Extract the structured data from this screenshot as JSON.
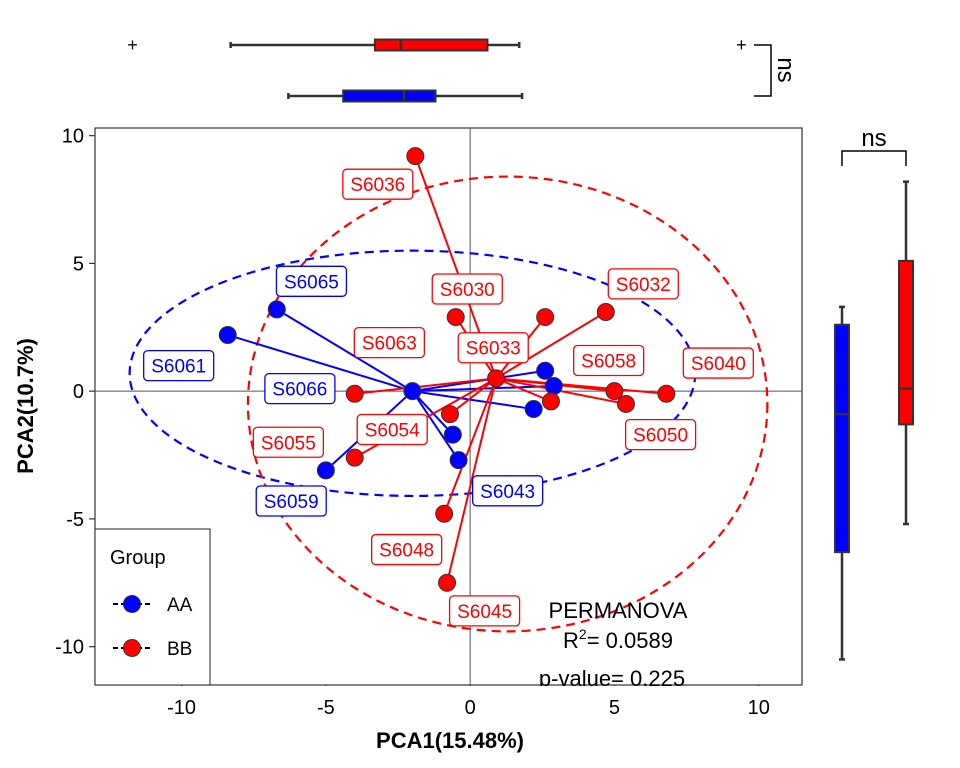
{
  "chart_data": {
    "type": "scatter",
    "xlabel": "PCA1(15.48%)",
    "ylabel": "PCA2(10.7%)",
    "xlim": [
      -13.0,
      11.5
    ],
    "ylim": [
      -11.5,
      10.3
    ],
    "x_ticks": [
      -10,
      -5,
      0,
      5,
      10
    ],
    "y_ticks": [
      -10,
      -5,
      0,
      5,
      10
    ],
    "x_tick_labels": [
      "-10",
      "-5",
      "0",
      "5",
      "10"
    ],
    "y_tick_labels": [
      "-10",
      "-5",
      "0",
      "5",
      "10"
    ],
    "colors": {
      "AA": "#0000ff",
      "BB": "#ff0000"
    },
    "legend": {
      "title": "Group",
      "entries": [
        "AA",
        "BB"
      ],
      "position": "bottom-left"
    },
    "groups": [
      {
        "name": "AA",
        "color": "#0000ff",
        "centroid": [
          -2.0,
          0.0
        ],
        "ellipse": {
          "center": [
            -2.0,
            0.7
          ],
          "rx": 9.8,
          "ry": 4.8
        },
        "points": [
          {
            "x": -8.4,
            "y": 2.2,
            "label": "S6061",
            "lx": -10.1,
            "ly": 1.0
          },
          {
            "x": -6.7,
            "y": 3.2,
            "label": "S6065",
            "lx": -5.5,
            "ly": 4.3
          },
          {
            "x": -2.0,
            "y": 0.0,
            "label": "S6066",
            "lx": -5.9,
            "ly": 0.1
          },
          {
            "x": -5.0,
            "y": -3.1,
            "label": "S6059",
            "lx": -6.2,
            "ly": -4.3
          },
          {
            "x": -0.6,
            "y": -1.7,
            "label": "",
            "lx": null,
            "ly": null
          },
          {
            "x": -0.4,
            "y": -2.7,
            "label": "S6043",
            "lx": 1.3,
            "ly": -3.9
          },
          {
            "x": 2.6,
            "y": 0.8,
            "label": "",
            "lx": null,
            "ly": null
          },
          {
            "x": 2.9,
            "y": 0.2,
            "label": "",
            "lx": null,
            "ly": null
          },
          {
            "x": 2.2,
            "y": -0.7,
            "label": "",
            "lx": null,
            "ly": null
          }
        ]
      },
      {
        "name": "BB",
        "color": "#ff0000",
        "centroid": [
          0.9,
          0.5
        ],
        "ellipse": {
          "center": [
            1.3,
            -0.5
          ],
          "rx": 9.0,
          "ry": 8.9
        },
        "points": [
          {
            "x": -1.9,
            "y": 9.2,
            "label": "S6036",
            "lx": -3.2,
            "ly": 8.1
          },
          {
            "x": -0.5,
            "y": 2.9,
            "label": "S6030",
            "lx": -0.1,
            "ly": 4.0
          },
          {
            "x": -4.0,
            "y": -0.1,
            "label": "S6055",
            "lx": -6.3,
            "ly": -2.0
          },
          {
            "x": -0.7,
            "y": -0.9,
            "label": "S6054",
            "lx": -2.7,
            "ly": -1.5
          },
          {
            "x": -4.0,
            "y": -2.6,
            "label": "",
            "lx": null,
            "ly": null
          },
          {
            "x": -0.9,
            "y": -4.8,
            "label": "S6048",
            "lx": -2.2,
            "ly": -6.2
          },
          {
            "x": -0.8,
            "y": -7.5,
            "label": "S6045",
            "lx": 0.5,
            "ly": -8.6
          },
          {
            "x": 0.9,
            "y": 0.5,
            "label": "S6063",
            "lx": -2.8,
            "ly": 1.9
          },
          {
            "x": 2.6,
            "y": 2.9,
            "label": "S6033",
            "lx": 0.8,
            "ly": 1.7
          },
          {
            "x": 4.7,
            "y": 3.1,
            "label": "S6032",
            "lx": 6.0,
            "ly": 4.2
          },
          {
            "x": 5.0,
            "y": 0.0,
            "label": "S6058",
            "lx": 4.8,
            "ly": 1.2
          },
          {
            "x": 5.4,
            "y": -0.5,
            "label": "S6050",
            "lx": 6.6,
            "ly": -1.7
          },
          {
            "x": 6.8,
            "y": -0.1,
            "label": "S6040",
            "lx": 8.6,
            "ly": 1.1
          },
          {
            "x": 2.8,
            "y": -0.4,
            "label": "",
            "lx": null,
            "ly": null
          }
        ]
      }
    ],
    "annotation": {
      "title": "PERMANOVA",
      "r2_prefix": "R",
      "r2_sup": "2",
      "r2_value": "= 0.0589",
      "pvalue": "p-value= 0.225"
    },
    "top_boxplot": {
      "axis": "PCA1",
      "significance": "ns",
      "boxes": [
        {
          "group": "BB",
          "color": "#ff0000",
          "min": -8.3,
          "q1": -3.3,
          "median": -2.4,
          "q3": 0.6,
          "max": 1.7,
          "outliers": [
            -11.7,
            9.4
          ]
        },
        {
          "group": "AA",
          "color": "#0000ff",
          "min": -6.3,
          "q1": -4.4,
          "median": -2.3,
          "q3": -1.2,
          "max": 1.8,
          "outliers": []
        }
      ]
    },
    "right_boxplot": {
      "axis": "PCA2",
      "significance": "ns",
      "boxes": [
        {
          "group": "AA",
          "color": "#0000ff",
          "min": -10.5,
          "q1": -6.3,
          "median": -0.9,
          "q3": 2.6,
          "max": 3.3,
          "outliers": []
        },
        {
          "group": "BB",
          "color": "#ff0000",
          "min": -5.2,
          "q1": -1.3,
          "median": 0.1,
          "q3": 5.1,
          "max": 8.2,
          "outliers": []
        }
      ]
    }
  }
}
